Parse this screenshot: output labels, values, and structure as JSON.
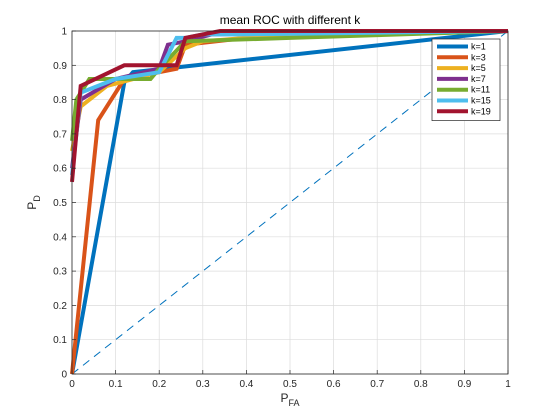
{
  "chart_data": {
    "type": "line",
    "title": "mean ROC with different k",
    "xlabel": {
      "main": "P",
      "sub": "FA"
    },
    "ylabel": {
      "main": "P",
      "sub": "D"
    },
    "xlim": [
      0,
      1
    ],
    "ylim": [
      0,
      1
    ],
    "xticks": [
      "0",
      "0.1",
      "0.2",
      "0.3",
      "0.4",
      "0.5",
      "0.6",
      "0.7",
      "0.8",
      "0.9",
      "1"
    ],
    "yticks": [
      "0",
      "0.1",
      "0.2",
      "0.3",
      "0.4",
      "0.5",
      "0.6",
      "0.7",
      "0.8",
      "0.9",
      "1"
    ],
    "grid": true,
    "legend_position": "top-right",
    "reference_line": {
      "style": "dashed",
      "color": "#0072BD",
      "x": [
        0,
        1
      ],
      "y": [
        0,
        1
      ]
    },
    "series": [
      {
        "name": "k=1",
        "color": "#0072BD",
        "x": [
          0,
          0.12,
          0.14,
          1.0
        ],
        "y": [
          0,
          0.85,
          0.88,
          1.0
        ]
      },
      {
        "name": "k=3",
        "color": "#D95319",
        "x": [
          0,
          0.06,
          0.12,
          0.2,
          0.24,
          0.26,
          0.4,
          1.0
        ],
        "y": [
          0,
          0.74,
          0.86,
          0.88,
          0.89,
          0.96,
          0.98,
          1.0
        ]
      },
      {
        "name": "k=5",
        "color": "#EDB120",
        "x": [
          0,
          0.02,
          0.08,
          0.2,
          0.26,
          0.3,
          0.4,
          1.0
        ],
        "y": [
          0.65,
          0.78,
          0.84,
          0.88,
          0.95,
          0.97,
          0.98,
          1.0
        ]
      },
      {
        "name": "k=7",
        "color": "#7E2F8E",
        "x": [
          0,
          0.02,
          0.1,
          0.2,
          0.22,
          0.26,
          0.32,
          1.0
        ],
        "y": [
          0.6,
          0.8,
          0.86,
          0.89,
          0.96,
          0.97,
          0.99,
          1.0
        ]
      },
      {
        "name": "k=11",
        "color": "#77AC30",
        "x": [
          0,
          0.01,
          0.04,
          0.12,
          0.18,
          0.2,
          0.26,
          0.5,
          1.0
        ],
        "y": [
          0.68,
          0.8,
          0.86,
          0.86,
          0.86,
          0.89,
          0.97,
          0.98,
          1.0
        ]
      },
      {
        "name": "k=15",
        "color": "#4DBEEE",
        "x": [
          0,
          0.02,
          0.1,
          0.2,
          0.24,
          0.26,
          0.3,
          0.4,
          1.0
        ],
        "y": [
          0.58,
          0.82,
          0.86,
          0.88,
          0.98,
          0.98,
          0.99,
          0.99,
          1.0
        ]
      },
      {
        "name": "k=19",
        "color": "#A2142F",
        "x": [
          0,
          0.02,
          0.12,
          0.2,
          0.24,
          0.26,
          0.34,
          1.0
        ],
        "y": [
          0.56,
          0.84,
          0.9,
          0.9,
          0.9,
          0.98,
          1.0,
          1.0
        ]
      }
    ]
  }
}
